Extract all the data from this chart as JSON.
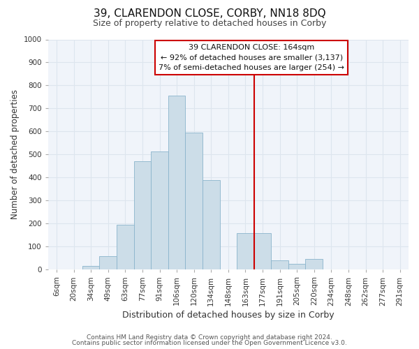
{
  "title": "39, CLARENDON CLOSE, CORBY, NN18 8DQ",
  "subtitle": "Size of property relative to detached houses in Corby",
  "xlabel": "Distribution of detached houses by size in Corby",
  "ylabel": "Number of detached properties",
  "bar_labels": [
    "6sqm",
    "20sqm",
    "34sqm",
    "49sqm",
    "63sqm",
    "77sqm",
    "91sqm",
    "106sqm",
    "120sqm",
    "134sqm",
    "148sqm",
    "163sqm",
    "177sqm",
    "191sqm",
    "205sqm",
    "220sqm",
    "234sqm",
    "248sqm",
    "262sqm",
    "277sqm",
    "291sqm"
  ],
  "bar_values": [
    0,
    0,
    15,
    60,
    195,
    470,
    515,
    755,
    595,
    390,
    0,
    160,
    160,
    42,
    25,
    47,
    0,
    0,
    0,
    0,
    0
  ],
  "bar_color": "#ccdde8",
  "bar_edge_color": "#8ab4cc",
  "ylim": [
    0,
    1000
  ],
  "yticks": [
    0,
    100,
    200,
    300,
    400,
    500,
    600,
    700,
    800,
    900,
    1000
  ],
  "vline_color": "#cc0000",
  "annotation_title": "39 CLARENDON CLOSE: 164sqm",
  "annotation_line1": "← 92% of detached houses are smaller (3,137)",
  "annotation_line2": "7% of semi-detached houses are larger (254) →",
  "footer1": "Contains HM Land Registry data © Crown copyright and database right 2024.",
  "footer2": "Contains public sector information licensed under the Open Government Licence v3.0.",
  "background_color": "#ffffff",
  "plot_background": "#f0f4fa",
  "grid_color": "#dde5ee",
  "title_fontsize": 11,
  "subtitle_fontsize": 9,
  "xlabel_fontsize": 9,
  "ylabel_fontsize": 8.5,
  "tick_fontsize": 7.5,
  "annotation_fontsize": 8,
  "footer_fontsize": 6.5
}
